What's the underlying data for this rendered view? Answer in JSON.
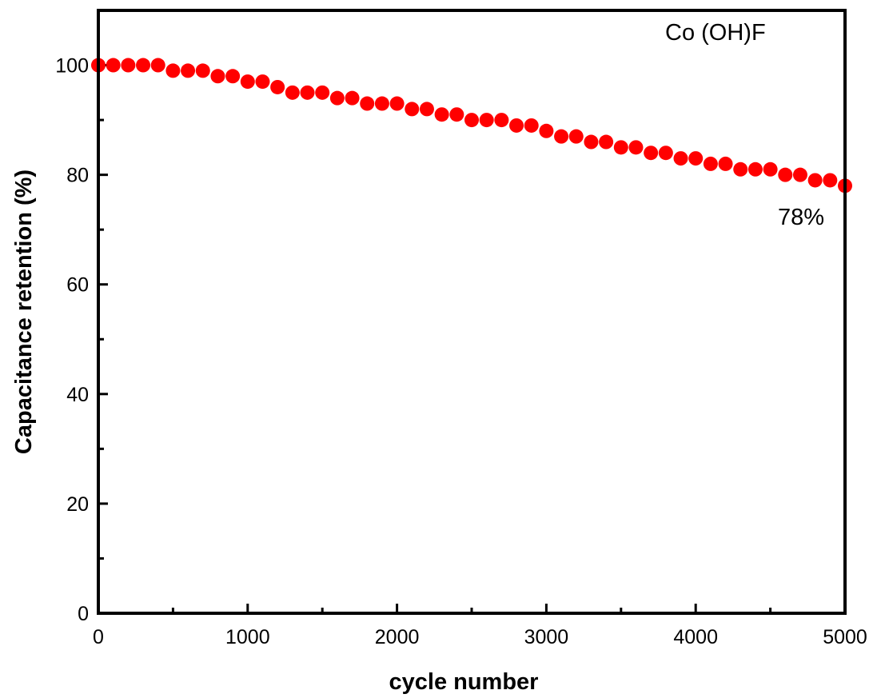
{
  "chart_data": {
    "type": "scatter",
    "title": "",
    "xlabel": "cycle number",
    "ylabel": "Capacitance retention (%)",
    "xlim": [
      0,
      5000
    ],
    "ylim": [
      0,
      110
    ],
    "x_ticks": [
      "0",
      "1000",
      "2000",
      "3000",
      "4000",
      "5000"
    ],
    "y_ticks": [
      "0",
      "20",
      "40",
      "60",
      "80",
      "100"
    ],
    "grid": false,
    "marker_color": "#ff0000",
    "series": [
      {
        "name": "Co (OH)F",
        "x": [
          0,
          100,
          200,
          300,
          400,
          500,
          600,
          700,
          800,
          900,
          1000,
          1100,
          1200,
          1300,
          1400,
          1500,
          1600,
          1700,
          1800,
          1900,
          2000,
          2100,
          2200,
          2300,
          2400,
          2500,
          2600,
          2700,
          2800,
          2900,
          3000,
          3100,
          3200,
          3300,
          3400,
          3500,
          3600,
          3700,
          3800,
          3900,
          4000,
          4100,
          4200,
          4300,
          4400,
          4500,
          4600,
          4700,
          4800,
          4900,
          5000
        ],
        "y": [
          100,
          100,
          100,
          100,
          100,
          99,
          99,
          99,
          98,
          98,
          97,
          97,
          96,
          95,
          95,
          95,
          94,
          94,
          93,
          93,
          93,
          92,
          92,
          91,
          91,
          90,
          90,
          90,
          89,
          89,
          88,
          87,
          87,
          86,
          86,
          85,
          85,
          84,
          84,
          83,
          83,
          82,
          82,
          81,
          81,
          81,
          80,
          80,
          79,
          79,
          78
        ]
      }
    ],
    "legend_label": "Co (OH)F",
    "annotations": [
      {
        "text": "78%",
        "x": 4950,
        "y": 72
      }
    ]
  }
}
